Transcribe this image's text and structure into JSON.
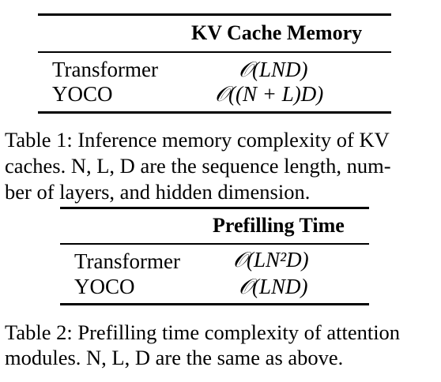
{
  "tables": [
    {
      "header": "KV Cache Memory",
      "rows": [
        {
          "name": "Transformer",
          "complexity": "𝒪(LND)"
        },
        {
          "name": "YOCO",
          "complexity": "𝒪((N + L)D)"
        }
      ],
      "caption": [
        "Table 1: Inference memory complexity of KV",
        "caches. N, L, D are the sequence length, num-",
        "ber of layers, and hidden dimension."
      ]
    },
    {
      "header": "Prefilling Time",
      "rows": [
        {
          "name": "Transformer",
          "complexity": "𝒪(LN²D)"
        },
        {
          "name": "YOCO",
          "complexity": "𝒪(LND)"
        }
      ],
      "caption": [
        "Table 2: Prefilling time complexity of attention",
        "modules. N, L, D are the same as above."
      ]
    }
  ]
}
